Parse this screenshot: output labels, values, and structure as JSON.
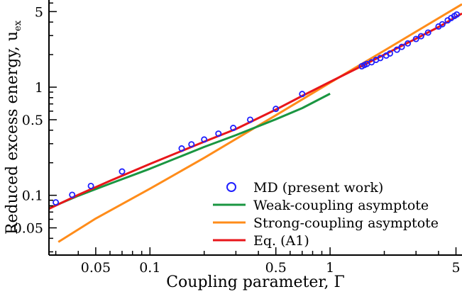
{
  "chart_data": {
    "type": "line",
    "xlabel": "Coupling parameter, Γ",
    "ylabel": "Reduced excess energy, u",
    "ylabel_subscript": "ex",
    "xscale": "log",
    "yscale": "log",
    "xlim": [
      0.0275,
      5.4
    ],
    "ylim": [
      0.028,
      6.4
    ],
    "x_major_ticks": [
      0.05,
      0.1,
      0.5,
      1,
      5
    ],
    "x_tick_labels": [
      "0.05",
      "0.1",
      "0.5",
      "1",
      "5"
    ],
    "y_major_ticks": [
      0.05,
      0.1,
      0.5,
      1,
      5
    ],
    "y_tick_labels": [
      "0.05",
      "0.1",
      "0.5",
      "1",
      "5"
    ],
    "grid": false,
    "legend_position": "bottom-right",
    "series": [
      {
        "name": "MD (present work)",
        "kind": "scatter",
        "marker": "open-circle",
        "color": "#1f1fff",
        "x": [
          0.03,
          0.037,
          0.047,
          0.07,
          0.15,
          0.17,
          0.2,
          0.24,
          0.29,
          0.36,
          0.5,
          0.7,
          1.5,
          1.55,
          1.6,
          1.7,
          1.8,
          1.9,
          2.05,
          2.15,
          2.35,
          2.5,
          2.7,
          3.0,
          3.2,
          3.5,
          4.0,
          4.2,
          4.5,
          4.7,
          4.9,
          5.05
        ],
        "y": [
          0.086,
          0.101,
          0.122,
          0.166,
          0.271,
          0.296,
          0.328,
          0.372,
          0.42,
          0.5,
          0.63,
          0.865,
          1.56,
          1.6,
          1.64,
          1.7,
          1.79,
          1.86,
          1.96,
          2.05,
          2.22,
          2.36,
          2.54,
          2.79,
          2.96,
          3.2,
          3.64,
          3.82,
          4.15,
          4.36,
          4.55,
          4.7
        ]
      },
      {
        "name": "Weak-coupling asymptote",
        "kind": "line",
        "color": "#1a9641",
        "x": [
          0.0275,
          0.04,
          0.06,
          0.1,
          0.2,
          0.3,
          0.5,
          0.7,
          1.0
        ],
        "y": [
          0.076,
          0.099,
          0.128,
          0.176,
          0.28,
          0.36,
          0.505,
          0.64,
          0.87
        ]
      },
      {
        "name": "Strong-coupling asymptote",
        "kind": "line",
        "color": "#ff8c1a",
        "x": [
          0.031,
          0.05,
          0.1,
          0.2,
          0.5,
          1.0,
          2.0,
          5.4
        ],
        "y": [
          0.037,
          0.061,
          0.115,
          0.222,
          0.55,
          1.1,
          2.18,
          5.85
        ]
      },
      {
        "name": "Eq. (A1)",
        "kind": "line",
        "color": "#e8161a",
        "x": [
          0.0275,
          0.04,
          0.06,
          0.1,
          0.2,
          0.3,
          0.5,
          0.7,
          1.0,
          1.5,
          2.0,
          3.0,
          4.0,
          5.4
        ],
        "y": [
          0.075,
          0.101,
          0.136,
          0.195,
          0.313,
          0.41,
          0.62,
          0.83,
          1.12,
          1.57,
          2.0,
          2.81,
          3.6,
          4.8
        ]
      }
    ]
  }
}
